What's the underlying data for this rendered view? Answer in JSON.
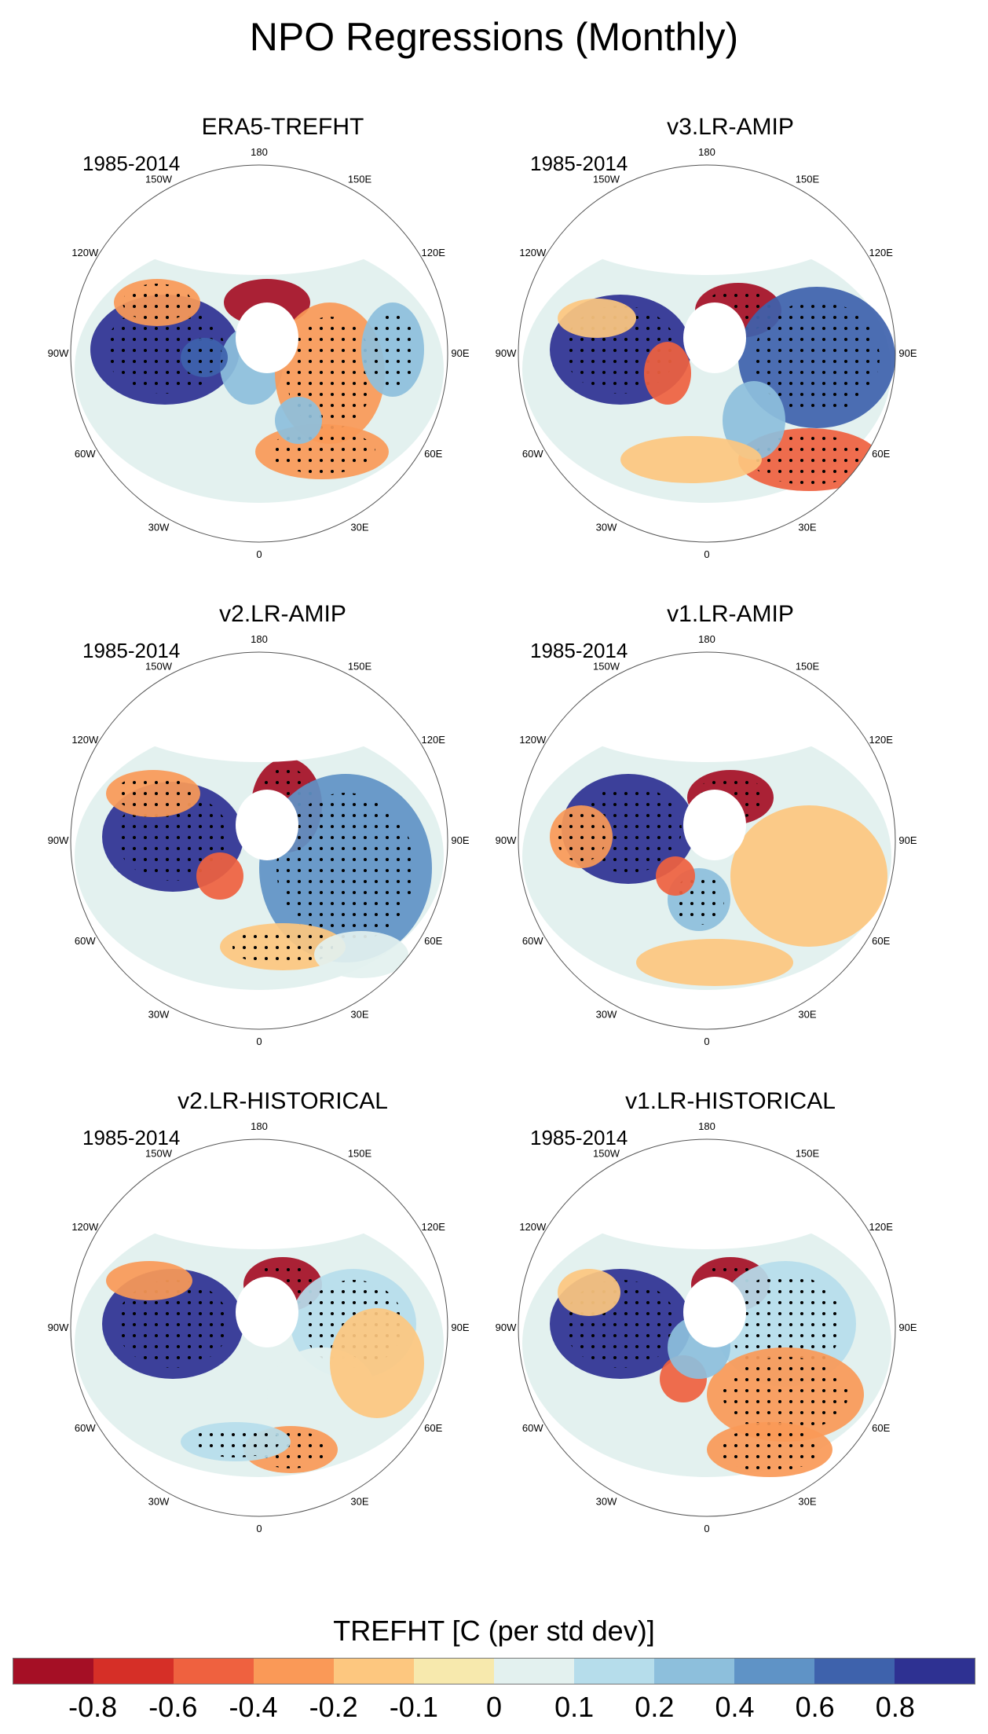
{
  "title": "NPO Regressions (Monthly)",
  "period": "1985-2014",
  "lon_labels": [
    "180",
    "150E",
    "120E",
    "90E",
    "60E",
    "30E",
    "0",
    "30W",
    "60W",
    "90W",
    "120W",
    "150W"
  ],
  "panels": [
    {
      "title": "ERA5-TREFHT"
    },
    {
      "title": "v3.LR-AMIP"
    },
    {
      "title": "v2.LR-AMIP"
    },
    {
      "title": "v1.LR-AMIP"
    },
    {
      "title": "v2.LR-HISTORICAL"
    },
    {
      "title": "v1.LR-HISTORICAL"
    }
  ],
  "colorbar": {
    "title": "TREFHT [C (per std dev)]",
    "colors": [
      "#a50f25",
      "#d62f27",
      "#ef613f",
      "#fa9957",
      "#fdc77f",
      "#f7e9ad",
      "#e3f1ef",
      "#b6ddeb",
      "#8dbfdc",
      "#5f93c6",
      "#3e62ac",
      "#2e3192"
    ],
    "ticks": [
      "-0.8",
      "-0.6",
      "-0.4",
      "-0.2",
      "-0.1",
      "0",
      "0.1",
      "0.2",
      "0.4",
      "0.6",
      "0.8"
    ]
  }
}
